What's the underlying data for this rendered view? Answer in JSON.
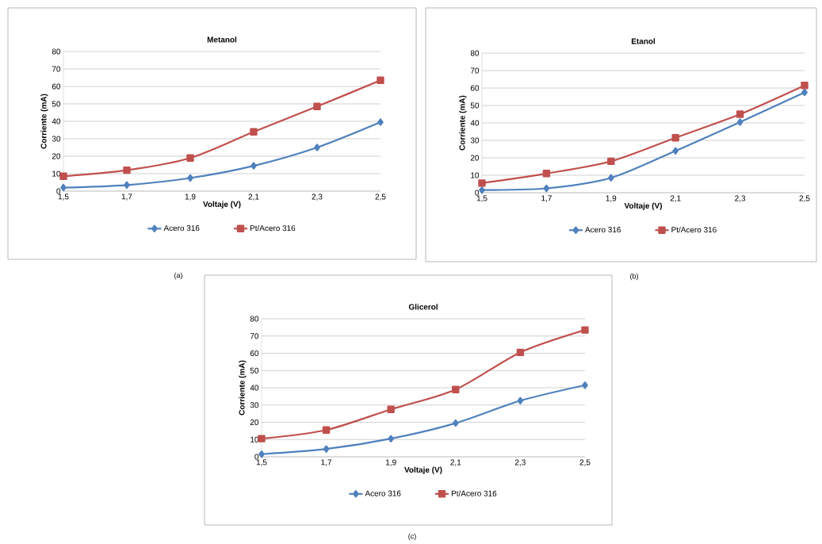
{
  "chart_data": [
    {
      "type": "line",
      "title": "Metanol",
      "xlabel": "Voltaje (V)",
      "ylabel": "Corriente (mA)",
      "categories": [
        "1,5",
        "1,7",
        "1,9",
        "2,1",
        "2,3",
        "2,5"
      ],
      "ylim": [
        0,
        80
      ],
      "yticks": [
        0,
        10,
        20,
        30,
        40,
        50,
        60,
        70,
        80
      ],
      "grid": "y",
      "legend": "bottom",
      "annotations": [
        "(a)"
      ],
      "series": [
        {
          "name": "Acero 316",
          "color": "#4f81bd",
          "marker": "diamond",
          "values": [
            2,
            3.5,
            7.5,
            14.5,
            25,
            39.5
          ]
        },
        {
          "name": "Pt/Acero 316",
          "color": "#c0504d",
          "marker": "square",
          "values": [
            8.5,
            12,
            19,
            34,
            48.5,
            63.5
          ]
        }
      ]
    },
    {
      "type": "line",
      "title": "Etanol",
      "xlabel": "Voltaje (V)",
      "ylabel": "Corriente (mA)",
      "categories": [
        "1,5",
        "1,7",
        "1,9",
        "2,1",
        "2,3",
        "2,5"
      ],
      "ylim": [
        0,
        80
      ],
      "yticks": [
        0,
        10,
        20,
        30,
        40,
        50,
        60,
        70,
        80
      ],
      "grid": "y",
      "legend": "bottom",
      "annotations": [
        "(b)"
      ],
      "series": [
        {
          "name": "Acero 316",
          "color": "#4f81bd",
          "marker": "diamond",
          "values": [
            1.5,
            2.5,
            8.5,
            24,
            40.5,
            57.5
          ]
        },
        {
          "name": "Pt/Acero 316",
          "color": "#c0504d",
          "marker": "square",
          "values": [
            5.5,
            11,
            18,
            31.5,
            45,
            61.5
          ]
        }
      ]
    },
    {
      "type": "line",
      "title": "Glicerol",
      "xlabel": "Voltaje (V)",
      "ylabel": "Corriente (mA)",
      "categories": [
        "1,5",
        "1,7",
        "1,9",
        "2,1",
        "2,3",
        "2,5"
      ],
      "ylim": [
        0,
        80
      ],
      "yticks": [
        0,
        10,
        20,
        30,
        40,
        50,
        60,
        70,
        80
      ],
      "grid": "y",
      "legend": "bottom",
      "annotations": [
        "(c)"
      ],
      "series": [
        {
          "name": "Acero 316",
          "color": "#4f81bd",
          "marker": "diamond",
          "values": [
            1.5,
            4.5,
            10.5,
            19.5,
            32.5,
            41.5
          ]
        },
        {
          "name": "Pt/Acero 316",
          "color": "#c0504d",
          "marker": "square",
          "values": [
            10.5,
            15.5,
            27.5,
            39,
            60.5,
            73.5
          ]
        }
      ]
    }
  ]
}
